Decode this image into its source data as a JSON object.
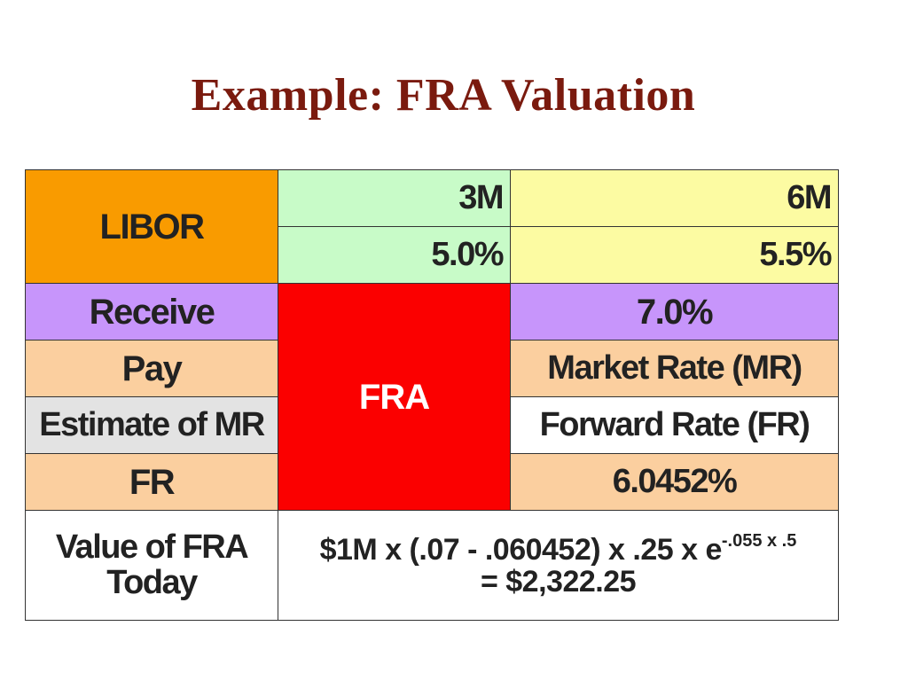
{
  "title": "Example: FRA Valuation",
  "table": {
    "libor_label": "LIBOR",
    "tenor_3m": "3M",
    "tenor_6m": "6M",
    "rate_3m": "5.0%",
    "rate_6m": "5.5%",
    "receive_label": "Receive",
    "receive_value": "7.0%",
    "fra_label": "FRA",
    "pay_label": "Pay",
    "pay_value": "Market Rate (MR)",
    "estimate_label": "Estimate of  MR",
    "estimate_value": "Forward Rate (FR)",
    "fr_label": "FR",
    "fr_value": "6.0452%",
    "value_label_line1": "Value of FRA",
    "value_label_line2": "Today",
    "formula_main": "$1M x (.07 - .060452) x .25 x e",
    "formula_exponent": "-.055 x .5",
    "formula_result": "= $2,322.25"
  },
  "colors": {
    "title": "#7a1a0e",
    "libor": "#f99b00",
    "tenor_3m": "#c8fbc8",
    "tenor_6m": "#fcfba2",
    "receive": "#c795fb",
    "fra": "#fb0000",
    "peach": "#fbcf9f",
    "estimate": "#e3e3e3"
  }
}
